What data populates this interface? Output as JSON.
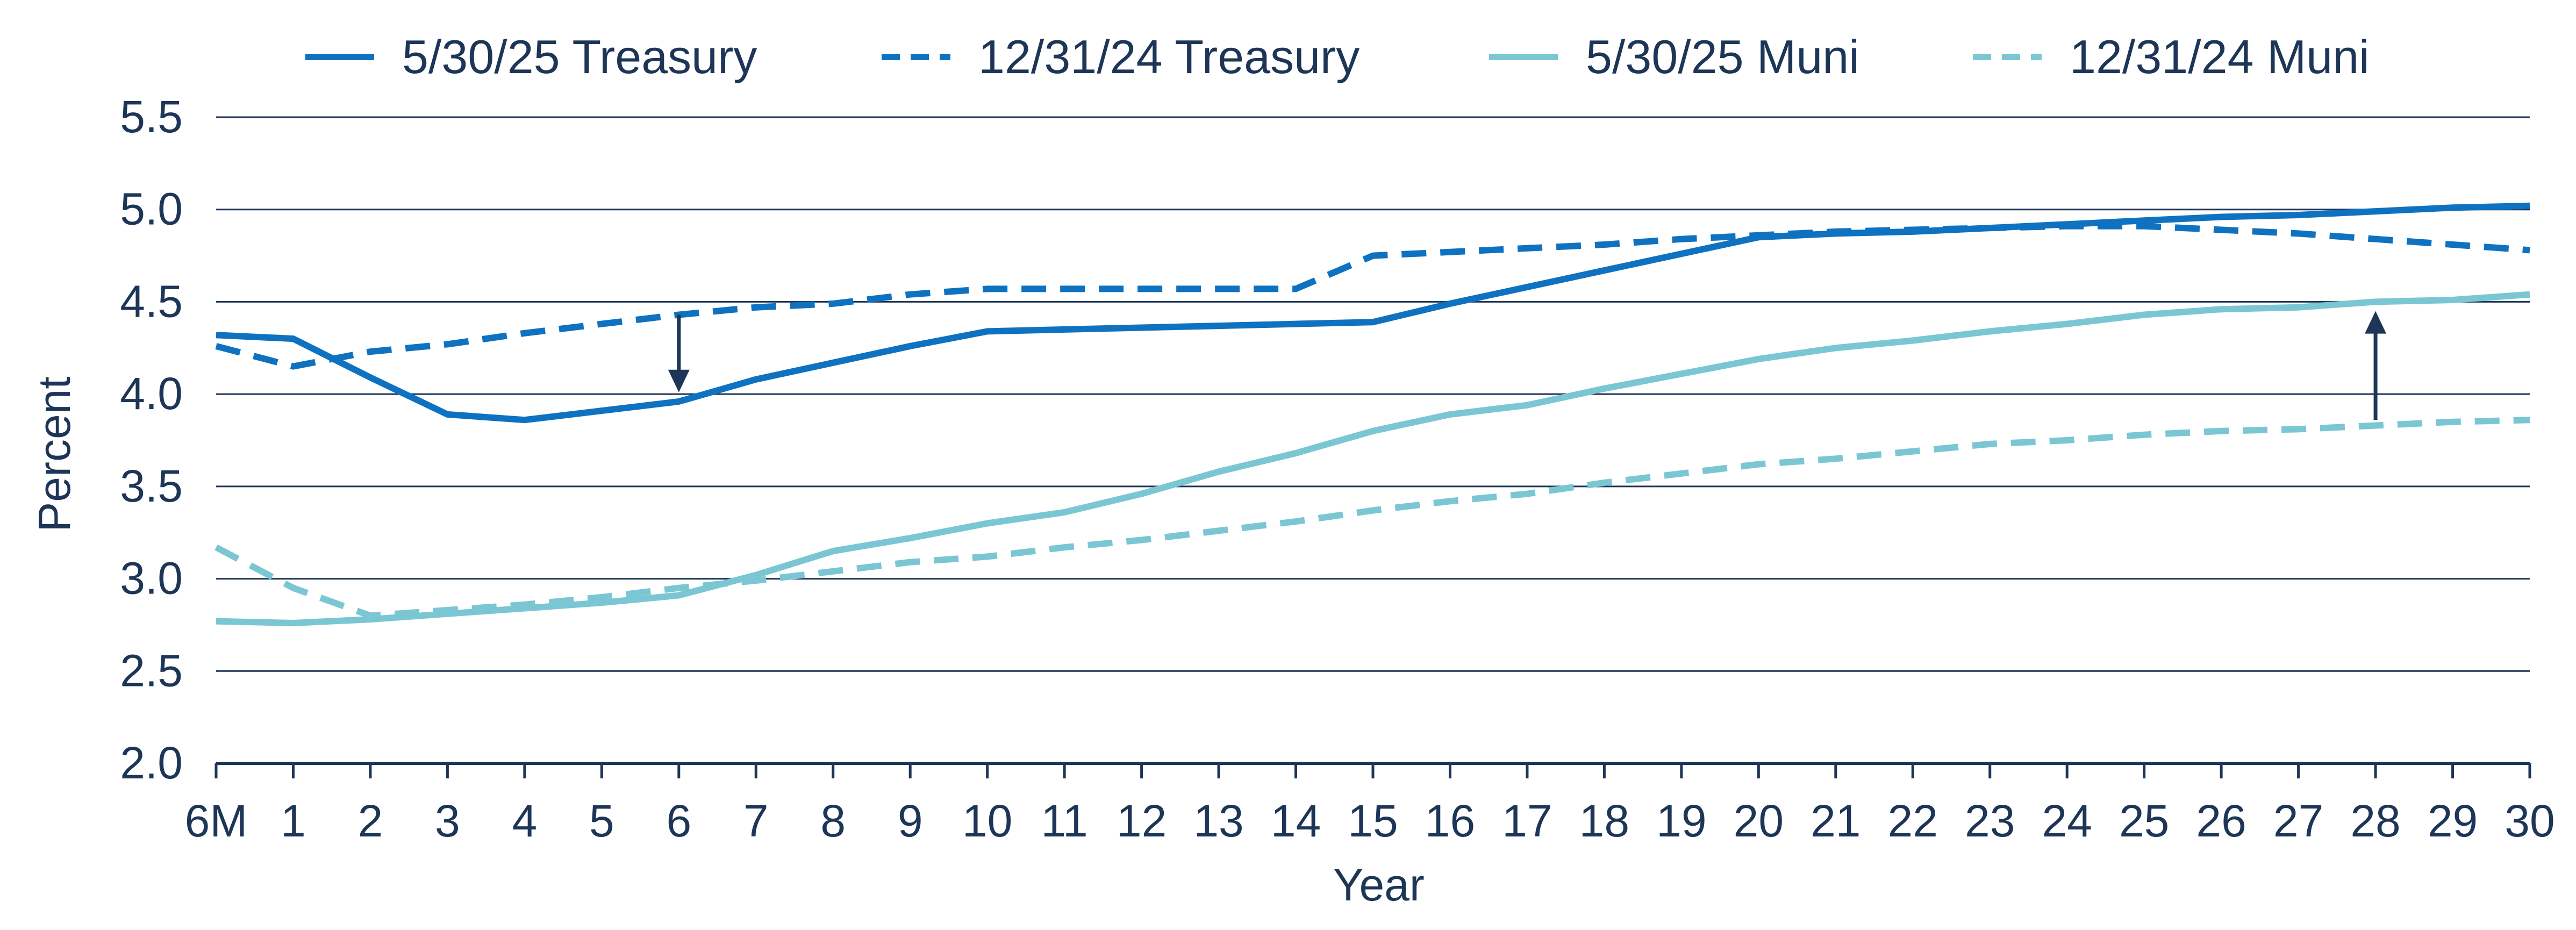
{
  "chart_data": {
    "type": "line",
    "xlabel": "Year",
    "ylabel": "Percent",
    "ylim": [
      2.0,
      5.5
    ],
    "yticks": [
      "2.0",
      "2.5",
      "3.0",
      "3.5",
      "4.0",
      "4.5",
      "5.0",
      "5.5"
    ],
    "categories": [
      "6M",
      "1",
      "2",
      "3",
      "4",
      "5",
      "6",
      "7",
      "8",
      "9",
      "10",
      "11",
      "12",
      "13",
      "14",
      "15",
      "16",
      "17",
      "18",
      "19",
      "20",
      "21",
      "22",
      "23",
      "24",
      "25",
      "26",
      "27",
      "28",
      "29",
      "30"
    ],
    "grid": true,
    "legend_position": "top",
    "series": [
      {
        "name": "5/30/25 Treasury",
        "color": "#0e72c1",
        "dash": "solid",
        "values": [
          4.32,
          4.3,
          4.09,
          3.89,
          3.86,
          3.91,
          3.96,
          4.08,
          4.17,
          4.26,
          4.34,
          4.35,
          4.36,
          4.37,
          4.38,
          4.39,
          4.49,
          4.58,
          4.67,
          4.76,
          4.85,
          4.87,
          4.88,
          4.9,
          4.92,
          4.94,
          4.96,
          4.97,
          4.99,
          5.01,
          5.02
        ]
      },
      {
        "name": "12/31/24 Treasury",
        "color": "#0e72c1",
        "dash": "dashed",
        "values": [
          4.26,
          4.15,
          4.23,
          4.27,
          4.33,
          4.38,
          4.43,
          4.47,
          4.49,
          4.54,
          4.57,
          4.57,
          4.57,
          4.57,
          4.57,
          4.75,
          4.77,
          4.79,
          4.81,
          4.84,
          4.86,
          4.88,
          4.89,
          4.9,
          4.91,
          4.91,
          4.89,
          4.87,
          4.84,
          4.81,
          4.78
        ]
      },
      {
        "name": "5/30/25 Muni",
        "color": "#7bc6d3",
        "dash": "solid",
        "values": [
          2.77,
          2.76,
          2.78,
          2.81,
          2.84,
          2.87,
          2.91,
          3.02,
          3.15,
          3.22,
          3.3,
          3.36,
          3.46,
          3.58,
          3.68,
          3.8,
          3.89,
          3.94,
          4.03,
          4.11,
          4.19,
          4.25,
          4.29,
          4.34,
          4.38,
          4.43,
          4.46,
          4.47,
          4.5,
          4.51,
          4.54
        ]
      },
      {
        "name": "12/31/24 Muni",
        "color": "#7bc6d3",
        "dash": "dashed",
        "values": [
          3.17,
          2.95,
          2.8,
          2.83,
          2.86,
          2.9,
          2.95,
          2.99,
          3.04,
          3.09,
          3.12,
          3.17,
          3.21,
          3.26,
          3.31,
          3.37,
          3.42,
          3.46,
          3.52,
          3.57,
          3.62,
          3.65,
          3.69,
          3.73,
          3.75,
          3.78,
          3.8,
          3.81,
          3.83,
          3.85,
          3.86
        ]
      }
    ],
    "annotations": [
      {
        "type": "arrow",
        "direction": "down",
        "at_category": "6",
        "from": 4.43,
        "to": 4.01,
        "color": "#1d3557"
      },
      {
        "type": "arrow",
        "direction": "up",
        "at_category": "28",
        "from": 3.86,
        "to": 4.45,
        "color": "#1d3557"
      }
    ]
  }
}
